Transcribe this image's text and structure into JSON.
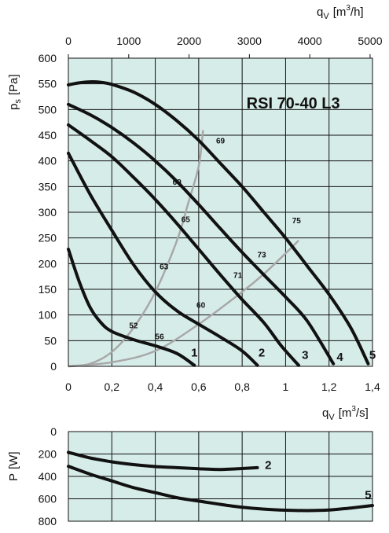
{
  "chart_data": [
    {
      "type": "line",
      "title": "RSI 70-40 L3",
      "bg_color": "#d6ece8",
      "curve_color": "#111111",
      "efficiency_color": "#a8a8a8",
      "grid": true,
      "x": {
        "label_main": "q",
        "label_sub": "V",
        "label_unit": "[m",
        "label_sup": "3",
        "label_unit_end": "/s]",
        "range": [
          0,
          1.4
        ],
        "ticks": [
          0,
          0.2,
          0.4,
          0.6,
          0.8,
          1,
          1.2,
          1.4
        ],
        "tick_labels": [
          "0",
          "0,2",
          "0,4",
          "0,6",
          "0,8",
          "1",
          "1,2",
          "1,4"
        ]
      },
      "x2": {
        "label_main": "q",
        "label_sub": "V",
        "label_unit": "[m",
        "label_sup": "3",
        "label_unit_end": "/h]",
        "range": [
          0,
          5040
        ],
        "ticks": [
          0,
          1000,
          2000,
          3000,
          4000,
          5000
        ],
        "tick_labels": [
          "0",
          "1000",
          "2000",
          "3000",
          "4000",
          "5000"
        ]
      },
      "y": {
        "label_main": "p",
        "label_sub": "s",
        "label_unit": "[Pa]",
        "range": [
          0,
          600
        ],
        "ticks": [
          0,
          50,
          100,
          150,
          200,
          250,
          300,
          350,
          400,
          450,
          500,
          550,
          600
        ],
        "tick_labels": [
          "0",
          "50",
          "100",
          "150",
          "200",
          "250",
          "300",
          "350",
          "400",
          "450",
          "500",
          "550",
          "600"
        ]
      },
      "series": [
        {
          "label": "1",
          "label_pos": [
            0.58,
            28
          ],
          "points": [
            [
              0,
              228
            ],
            [
              0.05,
              165
            ],
            [
              0.1,
              115
            ],
            [
              0.15,
              85
            ],
            [
              0.2,
              68
            ],
            [
              0.3,
              52
            ],
            [
              0.4,
              40
            ],
            [
              0.5,
              25
            ],
            [
              0.58,
              2
            ]
          ]
        },
        {
          "label": "2",
          "label_pos": [
            0.89,
            28
          ],
          "points": [
            [
              0,
              415
            ],
            [
              0.1,
              335
            ],
            [
              0.2,
              265
            ],
            [
              0.3,
              198
            ],
            [
              0.4,
              145
            ],
            [
              0.5,
              108
            ],
            [
              0.6,
              82
            ],
            [
              0.7,
              57
            ],
            [
              0.8,
              30
            ],
            [
              0.87,
              2
            ]
          ]
        },
        {
          "label": "3",
          "label_pos": [
            1.09,
            24
          ],
          "points": [
            [
              0,
              470
            ],
            [
              0.1,
              440
            ],
            [
              0.2,
              408
            ],
            [
              0.3,
              368
            ],
            [
              0.4,
              325
            ],
            [
              0.5,
              278
            ],
            [
              0.6,
              228
            ],
            [
              0.7,
              178
            ],
            [
              0.8,
              130
            ],
            [
              0.9,
              85
            ],
            [
              0.98,
              40
            ],
            [
              1.06,
              2
            ]
          ]
        },
        {
          "label": "4",
          "label_pos": [
            1.25,
            20
          ],
          "points": [
            [
              0,
              510
            ],
            [
              0.1,
              490
            ],
            [
              0.2,
              465
            ],
            [
              0.3,
              435
            ],
            [
              0.4,
              400
            ],
            [
              0.5,
              360
            ],
            [
              0.6,
              315
            ],
            [
              0.7,
              268
            ],
            [
              0.8,
              222
            ],
            [
              0.9,
              178
            ],
            [
              1.0,
              135
            ],
            [
              1.1,
              88
            ],
            [
              1.22,
              5
            ]
          ]
        },
        {
          "label": "5",
          "label_pos": [
            1.4,
            24
          ],
          "points": [
            [
              0,
              548
            ],
            [
              0.05,
              552
            ],
            [
              0.1,
              554
            ],
            [
              0.15,
              553
            ],
            [
              0.2,
              549
            ],
            [
              0.3,
              534
            ],
            [
              0.4,
              510
            ],
            [
              0.5,
              478
            ],
            [
              0.6,
              440
            ],
            [
              0.7,
              395
            ],
            [
              0.8,
              350
            ],
            [
              0.9,
              300
            ],
            [
              1.0,
              250
            ],
            [
              1.1,
              195
            ],
            [
              1.2,
              140
            ],
            [
              1.3,
              75
            ],
            [
              1.38,
              5
            ]
          ]
        }
      ],
      "efficiency_curves": [
        {
          "points": [
            [
              0,
              0
            ],
            [
              0.1,
              5
            ],
            [
              0.2,
              28
            ],
            [
              0.3,
              75
            ],
            [
              0.4,
              145
            ],
            [
              0.5,
              245
            ],
            [
              0.55,
              315
            ],
            [
              0.6,
              390
            ],
            [
              0.62,
              460
            ]
          ]
        },
        {
          "points": [
            [
              0,
              0
            ],
            [
              0.2,
              8
            ],
            [
              0.4,
              30
            ],
            [
              0.6,
              82
            ],
            [
              0.8,
              145
            ],
            [
              0.9,
              180
            ],
            [
              1.0,
              220
            ],
            [
              1.06,
              245
            ]
          ]
        }
      ],
      "efficiency_labels": [
        {
          "text": "52",
          "x": 0.3,
          "y": 80
        },
        {
          "text": "56",
          "x": 0.42,
          "y": 59
        },
        {
          "text": "60",
          "x": 0.61,
          "y": 120
        },
        {
          "text": "63",
          "x": 0.44,
          "y": 195
        },
        {
          "text": "65",
          "x": 0.54,
          "y": 287
        },
        {
          "text": "69",
          "x": 0.5,
          "y": 360
        },
        {
          "text": "71",
          "x": 0.78,
          "y": 178
        },
        {
          "text": "73",
          "x": 0.89,
          "y": 218
        },
        {
          "text": "69",
          "x": 0.7,
          "y": 440
        },
        {
          "text": "75",
          "x": 1.05,
          "y": 285
        }
      ]
    },
    {
      "type": "line",
      "bg_color": "#d6ece8",
      "curve_color": "#111111",
      "grid": true,
      "y": {
        "label_main": "P",
        "label_unit": "[W]",
        "range": [
          0,
          800
        ],
        "inverted": true,
        "ticks": [
          0,
          200,
          400,
          600,
          800
        ],
        "tick_labels": [
          "0",
          "200",
          "400",
          "600",
          "800"
        ]
      },
      "x": {
        "range": [
          0,
          1.4
        ]
      },
      "series": [
        {
          "label": "2",
          "label_pos": [
            0.92,
            298
          ],
          "points": [
            [
              0,
              185
            ],
            [
              0.1,
              235
            ],
            [
              0.2,
              270
            ],
            [
              0.3,
              295
            ],
            [
              0.4,
              312
            ],
            [
              0.5,
              322
            ],
            [
              0.6,
              332
            ],
            [
              0.7,
              338
            ],
            [
              0.8,
              330
            ],
            [
              0.87,
              322
            ]
          ]
        },
        {
          "label": "5",
          "label_pos": [
            1.38,
            565
          ],
          "points": [
            [
              0,
              310
            ],
            [
              0.1,
              380
            ],
            [
              0.2,
              440
            ],
            [
              0.3,
              500
            ],
            [
              0.4,
              545
            ],
            [
              0.5,
              590
            ],
            [
              0.6,
              620
            ],
            [
              0.7,
              650
            ],
            [
              0.8,
              675
            ],
            [
              0.9,
              692
            ],
            [
              1.0,
              702
            ],
            [
              1.1,
              705
            ],
            [
              1.2,
              700
            ],
            [
              1.3,
              682
            ],
            [
              1.4,
              660
            ]
          ]
        }
      ]
    }
  ]
}
